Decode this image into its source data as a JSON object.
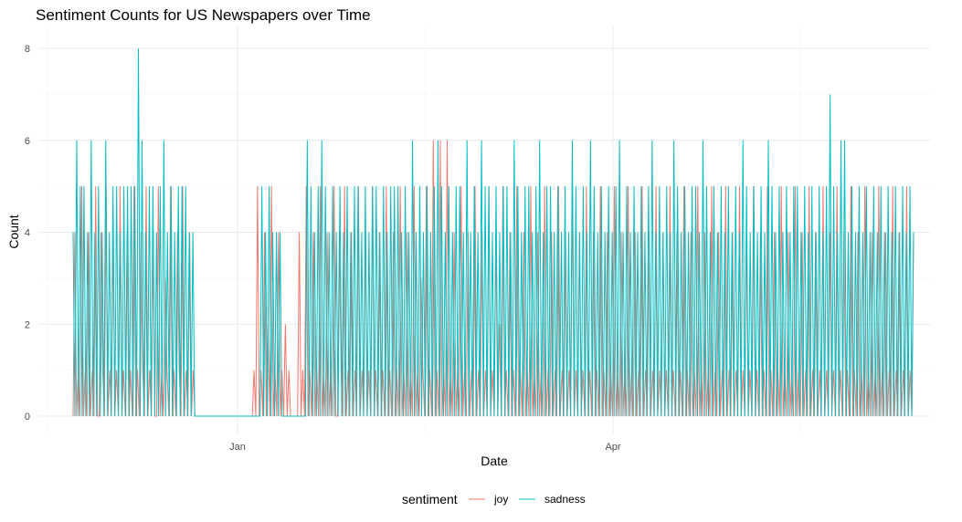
{
  "chart_data": {
    "type": "line",
    "title": "Sentiment Counts for US Newspapers over Time",
    "xlabel": "Date",
    "ylabel": "Count",
    "x_tick_labels": [
      "Jan",
      "Apr"
    ],
    "y_ticks": [
      0,
      2,
      4,
      6,
      8
    ],
    "ylim": [
      0,
      8
    ],
    "grid": true,
    "legend": {
      "title": "sentiment",
      "position": "bottom",
      "entries": [
        "joy",
        "sadness"
      ]
    },
    "colors": {
      "joy": "#F8766D",
      "sadness": "#00BFC4"
    },
    "x_start": "2020-11-10",
    "series": [
      {
        "name": "joy",
        "color": "#F8766D",
        "values": [
          0,
          4,
          0,
          1,
          0,
          5,
          0,
          1,
          0,
          4,
          0,
          1,
          0,
          5,
          0,
          0,
          4,
          1,
          0,
          5,
          0,
          1,
          0,
          4,
          0,
          1,
          0,
          5,
          0,
          1,
          0,
          4,
          0,
          1,
          0,
          5,
          0,
          1,
          0,
          4,
          1,
          0,
          5,
          0,
          1,
          0,
          4,
          0,
          0,
          5,
          0,
          1,
          0,
          3,
          1,
          0,
          5,
          0,
          1,
          0,
          4,
          1,
          0,
          5,
          0,
          1,
          0,
          4,
          0,
          1,
          0,
          0,
          0,
          0,
          0,
          0,
          0,
          0,
          0,
          0,
          0,
          0,
          0,
          0,
          0,
          0,
          0,
          0,
          0,
          0,
          0,
          0,
          0,
          0,
          0,
          0,
          0,
          0,
          0,
          0,
          0,
          0,
          0,
          0,
          1,
          0,
          5,
          0,
          1,
          0,
          4,
          0,
          2,
          0,
          5,
          0,
          1,
          0,
          4,
          0,
          1,
          0,
          2,
          0,
          1,
          0,
          0,
          0,
          0,
          0,
          4,
          0,
          1,
          0,
          5,
          0,
          1,
          0,
          4,
          0,
          1,
          0,
          5,
          0,
          1,
          0,
          4,
          0,
          1,
          0,
          5,
          0,
          0,
          4,
          1,
          0,
          5,
          0,
          1,
          0,
          4,
          0,
          1,
          0,
          5,
          0,
          1,
          0,
          4,
          0,
          1,
          0,
          5,
          0,
          1,
          0,
          4,
          0,
          1,
          0,
          5,
          0,
          1,
          0,
          4,
          0,
          1,
          0,
          5,
          0,
          1,
          0,
          4,
          0,
          1,
          0,
          5,
          0,
          1,
          0,
          3,
          1,
          0,
          5,
          0,
          1,
          0,
          6,
          0,
          1,
          0,
          6,
          0,
          1,
          0,
          6,
          0,
          1,
          0,
          4,
          0,
          1,
          0,
          5,
          0,
          1,
          0,
          4,
          0,
          1,
          0,
          5,
          0,
          1,
          0,
          4,
          0,
          1,
          0,
          5,
          0,
          1,
          0,
          4,
          0,
          2,
          0,
          5,
          0,
          1,
          0,
          4,
          0,
          1,
          0,
          5,
          0,
          1,
          0,
          4,
          0,
          1,
          0,
          5,
          0,
          1,
          0,
          4,
          0,
          1,
          0,
          5,
          0,
          1,
          0,
          4,
          0,
          1,
          0,
          5,
          0,
          1,
          0,
          4,
          0,
          1,
          0,
          5,
          0,
          1,
          0,
          4,
          0,
          1,
          0,
          5,
          0,
          1,
          0,
          4,
          0,
          1,
          0,
          5,
          0,
          1,
          0,
          4,
          0,
          1,
          0,
          5,
          0,
          1,
          0,
          4,
          0,
          1,
          0,
          5,
          0,
          1,
          0,
          4,
          0,
          1,
          0,
          5,
          0,
          1,
          0,
          4,
          0,
          1,
          0,
          5,
          0,
          1,
          0,
          4,
          0,
          1,
          0,
          5,
          0,
          1,
          0,
          4,
          0,
          1,
          0,
          5,
          0,
          1,
          0,
          4,
          0,
          1,
          0,
          5,
          0,
          1,
          0,
          4,
          0,
          1,
          0,
          5,
          0,
          1,
          0,
          4,
          0,
          1,
          0,
          5,
          0,
          1,
          0,
          4,
          0,
          1,
          0,
          5,
          0,
          1,
          0,
          4,
          0,
          1,
          0,
          5,
          0,
          1,
          0,
          4,
          0,
          1,
          0,
          5,
          0,
          1,
          0,
          4,
          0,
          1,
          0,
          5,
          0,
          1,
          0,
          4,
          0,
          1,
          0,
          5,
          0,
          1,
          0,
          4,
          0,
          1,
          0,
          5,
          0,
          1,
          0,
          4,
          0,
          1,
          0,
          5,
          0,
          1,
          0,
          4,
          0,
          1,
          0,
          5,
          0,
          1,
          0,
          4,
          0,
          1,
          0,
          5,
          0,
          1,
          0,
          4,
          0,
          1,
          0,
          5,
          0,
          1,
          0,
          4,
          0,
          1,
          0,
          5,
          0,
          1,
          0,
          4,
          0,
          1,
          0,
          5,
          0,
          1,
          0,
          4,
          0,
          1,
          0,
          5,
          0,
          1,
          0,
          4
        ]
      },
      {
        "name": "sadness",
        "color": "#00BFC4",
        "values": [
          4,
          0,
          6,
          0,
          5,
          0,
          5,
          0,
          4,
          0,
          6,
          0,
          4,
          0,
          5,
          0,
          4,
          0,
          6,
          0,
          4,
          0,
          5,
          0,
          5,
          0,
          4,
          0,
          5,
          0,
          5,
          0,
          5,
          0,
          5,
          0,
          8,
          0,
          6,
          0,
          4,
          0,
          5,
          0,
          5,
          0,
          4,
          0,
          5,
          0,
          6,
          0,
          4,
          0,
          5,
          0,
          4,
          0,
          5,
          0,
          5,
          0,
          5,
          0,
          4,
          0,
          4,
          0,
          0,
          0,
          0,
          0,
          0,
          0,
          0,
          0,
          0,
          0,
          0,
          0,
          0,
          0,
          0,
          0,
          0,
          0,
          0,
          0,
          0,
          0,
          0,
          0,
          0,
          0,
          0,
          0,
          0,
          0,
          0,
          0,
          0,
          0,
          0,
          0,
          5,
          0,
          4,
          0,
          5,
          0,
          4,
          0,
          4,
          0,
          4,
          0,
          0,
          0,
          0,
          0,
          0,
          0,
          0,
          0,
          0,
          0,
          0,
          0,
          0,
          6,
          0,
          5,
          0,
          4,
          0,
          5,
          0,
          6,
          0,
          5,
          0,
          4,
          0,
          5,
          0,
          4,
          0,
          5,
          0,
          4,
          0,
          5,
          0,
          4,
          0,
          5,
          0,
          5,
          0,
          4,
          0,
          5,
          0,
          4,
          0,
          5,
          0,
          5,
          0,
          4,
          0,
          5,
          0,
          4,
          0,
          5,
          0,
          5,
          0,
          5,
          0,
          4,
          0,
          5,
          0,
          4,
          0,
          6,
          0,
          4,
          0,
          5,
          0,
          4,
          0,
          5,
          0,
          4,
          0,
          5,
          0,
          6,
          0,
          5,
          0,
          4,
          0,
          5,
          0,
          4,
          0,
          5,
          0,
          5,
          0,
          4,
          0,
          6,
          0,
          4,
          0,
          5,
          0,
          4,
          0,
          6,
          0,
          5,
          0,
          5,
          0,
          4,
          0,
          5,
          0,
          4,
          0,
          5,
          0,
          5,
          0,
          4,
          0,
          6,
          0,
          5,
          0,
          4,
          0,
          5,
          0,
          5,
          0,
          4,
          0,
          5,
          0,
          6,
          0,
          4,
          0,
          5,
          0,
          5,
          0,
          4,
          0,
          5,
          0,
          4,
          0,
          5,
          0,
          4,
          0,
          6,
          0,
          5,
          0,
          4,
          0,
          5,
          0,
          4,
          0,
          6,
          0,
          5,
          0,
          4,
          0,
          5,
          0,
          4,
          0,
          5,
          0,
          4,
          0,
          5,
          0,
          6,
          0,
          4,
          0,
          5,
          0,
          4,
          0,
          5,
          0,
          4,
          0,
          5,
          0,
          4,
          0,
          5,
          0,
          6,
          0,
          4,
          0,
          5,
          0,
          4,
          0,
          5,
          0,
          4,
          0,
          6,
          0,
          5,
          0,
          4,
          0,
          5,
          0,
          4,
          0,
          5,
          0,
          5,
          0,
          4,
          0,
          6,
          0,
          5,
          0,
          4,
          0,
          5,
          0,
          4,
          0,
          5,
          0,
          4,
          0,
          5,
          0,
          4,
          0,
          5,
          0,
          4,
          0,
          6,
          0,
          5,
          0,
          4,
          0,
          5,
          0,
          4,
          0,
          5,
          0,
          4,
          0,
          6,
          0,
          5,
          0,
          4,
          0,
          5,
          0,
          4,
          0,
          5,
          0,
          4,
          0,
          5,
          0,
          5,
          0,
          4,
          0,
          5,
          0,
          4,
          0,
          5,
          0,
          4,
          0,
          5,
          0,
          4,
          0,
          5,
          0,
          7,
          0,
          5,
          0,
          4,
          0,
          6,
          0,
          6,
          0,
          4,
          0,
          5,
          0,
          4,
          0,
          5,
          0,
          4,
          0,
          5,
          0,
          4,
          0,
          5,
          0,
          4,
          0,
          5,
          0,
          4,
          0,
          5,
          0,
          4,
          0,
          5,
          0,
          4,
          0,
          5,
          0,
          4,
          0,
          5,
          0,
          4
        ]
      }
    ]
  }
}
